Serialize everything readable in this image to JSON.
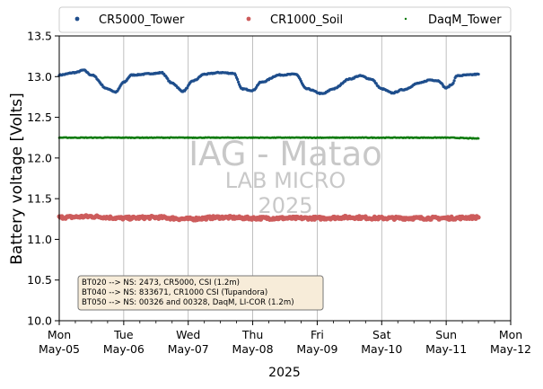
{
  "chart_data": {
    "type": "scatter",
    "xlabel": "2025",
    "ylabel": "Battery voltage [Volts]",
    "ylim": [
      10.0,
      13.5
    ],
    "yticks": [
      "10.0",
      "10.5",
      "11.0",
      "11.5",
      "12.0",
      "12.5",
      "13.0",
      "13.5"
    ],
    "x_start": "2025-05-05",
    "x_end": "2025-05-12",
    "xticks": [
      {
        "day": "Mon",
        "date": "May-05"
      },
      {
        "day": "Tue",
        "date": "May-06"
      },
      {
        "day": "Wed",
        "date": "May-07"
      },
      {
        "day": "Thu",
        "date": "May-08"
      },
      {
        "day": "Fri",
        "date": "May-09"
      },
      {
        "day": "Sat",
        "date": "May-10"
      },
      {
        "day": "Sun",
        "date": "May-11"
      },
      {
        "day": "Mon",
        "date": "May-12"
      }
    ],
    "grid": "vertical",
    "legend_position": "top",
    "series": [
      {
        "name": "CR5000_Tower",
        "color": "#1f4e8c",
        "points": [
          [
            "2025-05-05 00:00",
            13.02
          ],
          [
            "2025-05-05 06:00",
            13.05
          ],
          [
            "2025-05-05 09:00",
            13.08
          ],
          [
            "2025-05-05 12:00",
            13.02
          ],
          [
            "2025-05-05 18:00",
            12.85
          ],
          [
            "2025-05-05 21:00",
            12.81
          ],
          [
            "2025-05-06 00:00",
            12.93
          ],
          [
            "2025-05-06 03:00",
            13.02
          ],
          [
            "2025-05-06 12:00",
            13.04
          ],
          [
            "2025-05-06 14:00",
            13.05
          ],
          [
            "2025-05-06 18:00",
            12.92
          ],
          [
            "2025-05-06 22:00",
            12.82
          ],
          [
            "2025-05-07 02:00",
            12.95
          ],
          [
            "2025-05-07 06:00",
            13.03
          ],
          [
            "2025-05-07 12:00",
            13.05
          ],
          [
            "2025-05-07 17:00",
            13.04
          ],
          [
            "2025-05-07 20:00",
            12.85
          ],
          [
            "2025-05-08 00:00",
            12.83
          ],
          [
            "2025-05-08 03:00",
            12.93
          ],
          [
            "2025-05-08 10:00",
            13.02
          ],
          [
            "2025-05-08 16:00",
            13.03
          ],
          [
            "2025-05-08 20:00",
            12.85
          ],
          [
            "2025-05-09 02:00",
            12.79
          ],
          [
            "2025-05-09 06:00",
            12.85
          ],
          [
            "2025-05-09 12:00",
            12.97
          ],
          [
            "2025-05-09 16:00",
            13.01
          ],
          [
            "2025-05-09 20:00",
            12.97
          ],
          [
            "2025-05-10 00:00",
            12.85
          ],
          [
            "2025-05-10 04:00",
            12.8
          ],
          [
            "2025-05-10 08:00",
            12.84
          ],
          [
            "2025-05-10 14:00",
            12.92
          ],
          [
            "2025-05-10 18:00",
            12.96
          ],
          [
            "2025-05-10 21:00",
            12.95
          ],
          [
            "2025-05-11 00:00",
            12.86
          ],
          [
            "2025-05-11 02:00",
            12.9
          ],
          [
            "2025-05-11 04:00",
            13.01
          ],
          [
            "2025-05-11 08:00",
            13.02
          ],
          [
            "2025-05-11 12:00",
            13.03
          ]
        ]
      },
      {
        "name": "CR1000_Soil",
        "color": "#cd5c5c",
        "points": [
          [
            "2025-05-05 00:00",
            11.27
          ],
          [
            "2025-05-05 12:00",
            11.28
          ],
          [
            "2025-05-06 00:00",
            11.26
          ],
          [
            "2025-05-06 12:00",
            11.27
          ],
          [
            "2025-05-07 00:00",
            11.25
          ],
          [
            "2025-05-07 12:00",
            11.27
          ],
          [
            "2025-05-08 00:00",
            11.26
          ],
          [
            "2025-05-08 12:00",
            11.26
          ],
          [
            "2025-05-09 00:00",
            11.26
          ],
          [
            "2025-05-09 12:00",
            11.27
          ],
          [
            "2025-05-10 00:00",
            11.26
          ],
          [
            "2025-05-10 12:00",
            11.26
          ],
          [
            "2025-05-11 00:00",
            11.26
          ],
          [
            "2025-05-11 12:00",
            11.27
          ]
        ]
      },
      {
        "name": "DaqM_Tower",
        "color": "#0a7a0a",
        "points": [
          [
            "2025-05-05 00:00",
            12.25
          ],
          [
            "2025-05-06 00:00",
            12.25
          ],
          [
            "2025-05-07 00:00",
            12.25
          ],
          [
            "2025-05-08 00:00",
            12.25
          ],
          [
            "2025-05-09 00:00",
            12.25
          ],
          [
            "2025-05-10 00:00",
            12.25
          ],
          [
            "2025-05-11 00:00",
            12.25
          ],
          [
            "2025-05-11 12:00",
            12.24
          ]
        ]
      }
    ],
    "watermark": [
      "IAG - Matao",
      "LAB MICRO",
      "2025"
    ],
    "annotation": [
      "BT020 --> NS: 2473, CR5000, CSI (1.2m)",
      "BT040 --> NS: 833671, CR1000 CSI (Tupandora)",
      "BT050 --> NS: 00326 and 00328, DaqM, LI-COR (1.2m)"
    ]
  }
}
